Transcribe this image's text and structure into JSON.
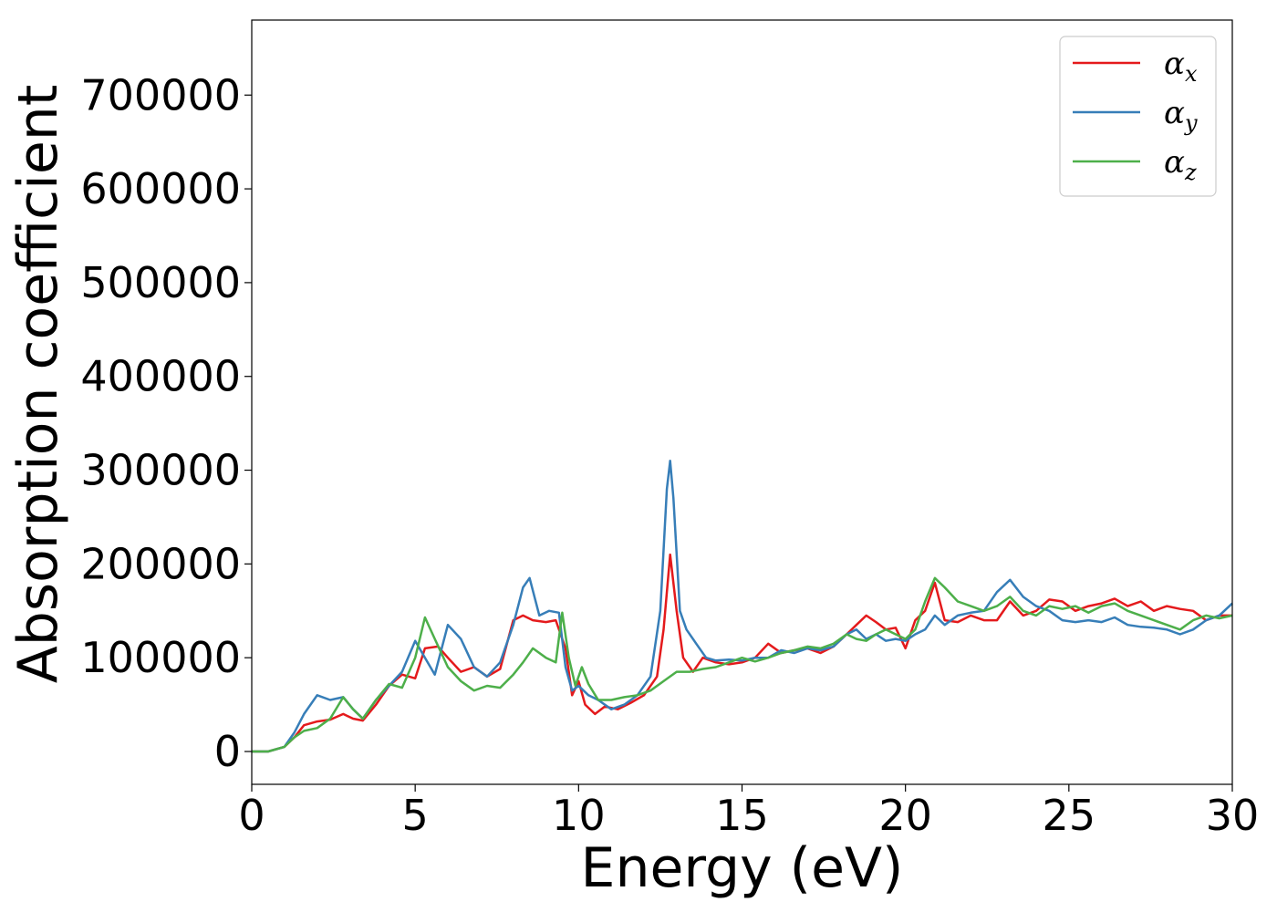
{
  "chart_data": {
    "type": "line",
    "title": "",
    "xlabel": "Energy (eV)",
    "ylabel": "Absorption coefficient",
    "xlim": [
      0,
      30
    ],
    "ylim": [
      -35000,
      780000
    ],
    "xticks": [
      0,
      5,
      10,
      15,
      20,
      25,
      30
    ],
    "yticks": [
      0,
      100000,
      200000,
      300000,
      400000,
      500000,
      600000,
      700000
    ],
    "grid": false,
    "legend_position": "top-right",
    "series": [
      {
        "name": "αx",
        "label_main": "α",
        "label_sub": "x",
        "color": "#e41a1c",
        "x": [
          0,
          0.5,
          1.0,
          1.3,
          1.6,
          2.0,
          2.4,
          2.8,
          3.1,
          3.4,
          3.8,
          4.2,
          4.6,
          5.0,
          5.3,
          5.7,
          6.0,
          6.4,
          6.8,
          7.2,
          7.6,
          8.0,
          8.3,
          8.6,
          9.0,
          9.3,
          9.6,
          9.8,
          10.0,
          10.2,
          10.5,
          10.8,
          11.2,
          11.6,
          12.0,
          12.4,
          12.6,
          12.8,
          13.0,
          13.2,
          13.5,
          13.8,
          14.2,
          14.6,
          15.0,
          15.4,
          15.8,
          16.2,
          16.6,
          17.0,
          17.4,
          17.8,
          18.2,
          18.5,
          18.8,
          19.1,
          19.4,
          19.7,
          20.0,
          20.3,
          20.6,
          20.9,
          21.2,
          21.6,
          22.0,
          22.4,
          22.8,
          23.2,
          23.6,
          24.0,
          24.4,
          24.8,
          25.2,
          25.6,
          26.0,
          26.4,
          26.8,
          27.2,
          27.6,
          28.0,
          28.4,
          28.8,
          29.2,
          29.6,
          30.0
        ],
        "values": [
          0,
          0,
          5000,
          15000,
          28000,
          32000,
          34000,
          40000,
          35000,
          33000,
          50000,
          70000,
          82000,
          78000,
          110000,
          112000,
          100000,
          85000,
          90000,
          80000,
          88000,
          140000,
          145000,
          140000,
          138000,
          140000,
          110000,
          60000,
          75000,
          50000,
          40000,
          48000,
          45000,
          52000,
          60000,
          80000,
          130000,
          210000,
          150000,
          100000,
          85000,
          100000,
          95000,
          93000,
          95000,
          100000,
          115000,
          105000,
          108000,
          110000,
          105000,
          112000,
          125000,
          135000,
          145000,
          138000,
          130000,
          132000,
          110000,
          140000,
          150000,
          180000,
          140000,
          138000,
          145000,
          140000,
          140000,
          160000,
          145000,
          150000,
          162000,
          160000,
          150000,
          155000,
          158000,
          163000,
          155000,
          160000,
          150000,
          155000,
          152000,
          150000,
          140000,
          145000,
          145000
        ]
      },
      {
        "name": "αy",
        "label_main": "α",
        "label_sub": "y",
        "color": "#377eb8",
        "x": [
          0,
          0.5,
          1.0,
          1.3,
          1.6,
          2.0,
          2.4,
          2.8,
          3.1,
          3.4,
          3.8,
          4.2,
          4.6,
          5.0,
          5.3,
          5.6,
          6.0,
          6.4,
          6.8,
          7.2,
          7.6,
          8.0,
          8.3,
          8.5,
          8.8,
          9.1,
          9.4,
          9.6,
          9.8,
          10.0,
          10.3,
          10.6,
          11.0,
          11.4,
          11.8,
          12.2,
          12.5,
          12.7,
          12.8,
          12.9,
          13.1,
          13.3,
          13.6,
          13.9,
          14.2,
          14.6,
          15.0,
          15.4,
          15.8,
          16.2,
          16.6,
          17.0,
          17.4,
          17.8,
          18.2,
          18.5,
          18.8,
          19.1,
          19.4,
          19.7,
          20.0,
          20.3,
          20.6,
          20.9,
          21.2,
          21.6,
          22.0,
          22.4,
          22.8,
          23.2,
          23.6,
          24.0,
          24.4,
          24.8,
          25.2,
          25.6,
          26.0,
          26.4,
          26.8,
          27.2,
          27.6,
          28.0,
          28.4,
          28.8,
          29.2,
          29.6,
          30.0
        ],
        "values": [
          0,
          0,
          5000,
          20000,
          40000,
          60000,
          55000,
          58000,
          45000,
          35000,
          55000,
          70000,
          85000,
          118000,
          100000,
          82000,
          135000,
          120000,
          90000,
          80000,
          95000,
          135000,
          175000,
          185000,
          145000,
          150000,
          148000,
          90000,
          65000,
          70000,
          60000,
          55000,
          45000,
          50000,
          60000,
          80000,
          150000,
          280000,
          310000,
          270000,
          150000,
          130000,
          115000,
          100000,
          97000,
          98000,
          97000,
          100000,
          100000,
          108000,
          105000,
          110000,
          108000,
          112000,
          125000,
          130000,
          120000,
          125000,
          118000,
          120000,
          118000,
          125000,
          130000,
          145000,
          135000,
          145000,
          148000,
          150000,
          170000,
          183000,
          165000,
          155000,
          150000,
          140000,
          138000,
          140000,
          138000,
          143000,
          135000,
          133000,
          132000,
          130000,
          125000,
          130000,
          140000,
          145000,
          158000
        ]
      },
      {
        "name": "αz",
        "label_main": "α",
        "label_sub": "z",
        "color": "#4daf4a",
        "x": [
          0,
          0.5,
          1.0,
          1.3,
          1.6,
          2.0,
          2.4,
          2.8,
          3.1,
          3.4,
          3.8,
          4.2,
          4.6,
          5.0,
          5.3,
          5.6,
          6.0,
          6.4,
          6.8,
          7.2,
          7.6,
          8.0,
          8.3,
          8.6,
          9.0,
          9.3,
          9.5,
          9.7,
          9.9,
          10.1,
          10.3,
          10.6,
          11.0,
          11.4,
          11.8,
          12.2,
          12.6,
          13.0,
          13.4,
          13.8,
          14.2,
          14.6,
          15.0,
          15.4,
          15.8,
          16.2,
          16.6,
          17.0,
          17.4,
          17.8,
          18.2,
          18.5,
          18.8,
          19.1,
          19.4,
          19.7,
          20.0,
          20.3,
          20.6,
          20.9,
          21.2,
          21.6,
          22.0,
          22.4,
          22.8,
          23.2,
          23.6,
          24.0,
          24.4,
          24.8,
          25.2,
          25.6,
          26.0,
          26.4,
          26.8,
          27.2,
          27.6,
          28.0,
          28.4,
          28.8,
          29.2,
          29.6,
          30.0
        ],
        "values": [
          0,
          0,
          5000,
          15000,
          22000,
          25000,
          35000,
          58000,
          45000,
          35000,
          55000,
          72000,
          68000,
          100000,
          143000,
          120000,
          90000,
          75000,
          65000,
          70000,
          68000,
          82000,
          95000,
          110000,
          100000,
          95000,
          148000,
          100000,
          70000,
          90000,
          72000,
          55000,
          55000,
          58000,
          60000,
          65000,
          75000,
          85000,
          85000,
          88000,
          90000,
          95000,
          100000,
          96000,
          100000,
          105000,
          108000,
          112000,
          110000,
          115000,
          125000,
          120000,
          118000,
          125000,
          130000,
          125000,
          120000,
          130000,
          160000,
          185000,
          175000,
          160000,
          155000,
          150000,
          155000,
          165000,
          150000,
          145000,
          155000,
          152000,
          155000,
          148000,
          155000,
          158000,
          150000,
          145000,
          140000,
          135000,
          130000,
          140000,
          145000,
          142000,
          145000
        ]
      }
    ]
  }
}
